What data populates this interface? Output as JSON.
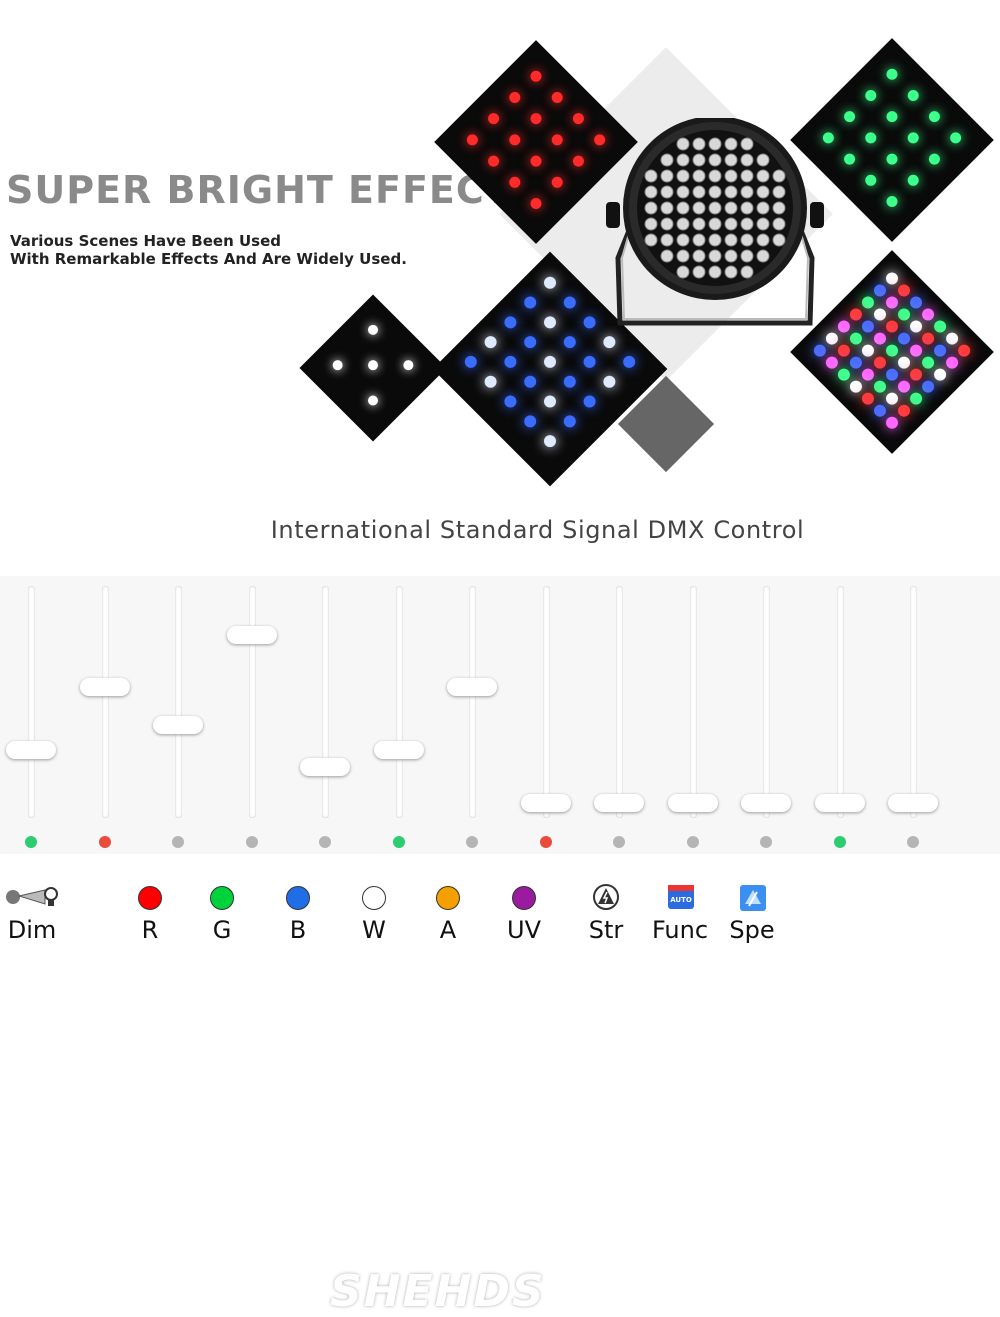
{
  "headline": "SUPER BRIGHT EFFECT",
  "subline1": "Various Scenes Have Been Used",
  "subline2": "With Remarkable Effects And Are Widely Used.",
  "watermark": "SHEHDS",
  "dmx_title": "International Standard Signal DMX Control",
  "faders": [
    {
      "level": 0.3,
      "led": "#2ecc71"
    },
    {
      "level": 0.6,
      "led": "#e74c3c"
    },
    {
      "level": 0.42,
      "led": "#b5b5b5"
    },
    {
      "level": 0.85,
      "led": "#b5b5b5"
    },
    {
      "level": 0.22,
      "led": "#b5b5b5"
    },
    {
      "level": 0.3,
      "led": "#2ecc71"
    },
    {
      "level": 0.6,
      "led": "#b5b5b5"
    },
    {
      "level": 0.05,
      "led": "#e74c3c"
    },
    {
      "level": 0.05,
      "led": "#b5b5b5"
    },
    {
      "level": 0.05,
      "led": "#b5b5b5"
    },
    {
      "level": 0.05,
      "led": "#b5b5b5"
    },
    {
      "level": 0.05,
      "led": "#2ecc71"
    },
    {
      "level": 0.05,
      "led": "#b5b5b5"
    }
  ],
  "legend": [
    {
      "label": "Dim",
      "icon": "dimmer-icon"
    },
    {
      "label": "R",
      "color": "#ff0000"
    },
    {
      "label": "G",
      "color": "#00d23c"
    },
    {
      "label": "B",
      "color": "#1f6ee6"
    },
    {
      "label": "W",
      "color": "#ffffff"
    },
    {
      "label": "A",
      "color": "#f5a000"
    },
    {
      "label": "UV",
      "color": "#9a1aa0"
    },
    {
      "label": "Str",
      "icon": "strobe-icon"
    },
    {
      "label": "Func",
      "icon": "auto-icon",
      "icon_text": "AUTO"
    },
    {
      "label": "Spe",
      "icon": "speed-icon"
    }
  ]
}
